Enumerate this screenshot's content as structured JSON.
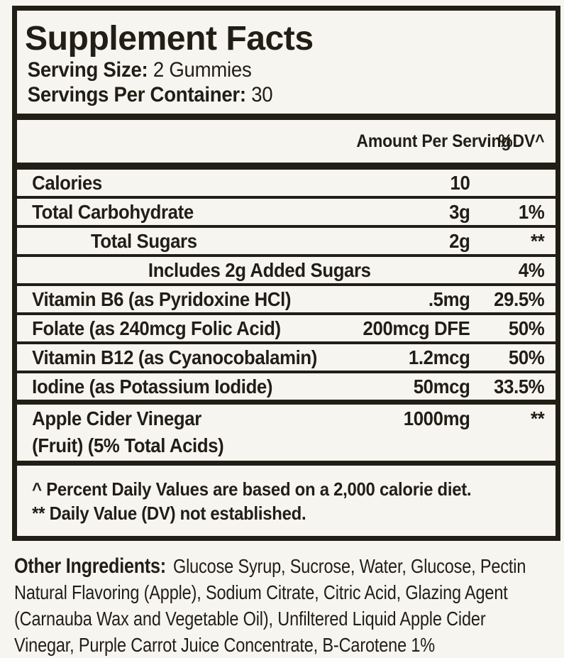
{
  "panel": {
    "title": "Supplement Facts",
    "serving_size": {
      "label": "Serving Size:",
      "value": "2 Gummies"
    },
    "servings_per_container": {
      "label": "Servings Per Container:",
      "value": "30"
    },
    "columns": {
      "amount": "Amount Per Serving",
      "dv": "%DV^"
    },
    "rows": [
      {
        "name": "Calories",
        "amount": "10",
        "dv": "",
        "indent": 0
      },
      {
        "name": "Total Carbohydrate",
        "amount": "3g",
        "dv": "1%",
        "indent": 0
      },
      {
        "name": "Total Sugars",
        "amount": "2g",
        "dv": "**",
        "indent": 1
      },
      {
        "name": "Includes 2g Added Sugars",
        "amount": "",
        "dv": "4%",
        "indent": 2
      },
      {
        "name": "Vitamin B6 (as Pyridoxine HCl)",
        "amount": ".5mg",
        "dv": "29.5%",
        "indent": 0
      },
      {
        "name": "Folate (as 240mcg Folic Acid)",
        "amount": "200mcg DFE",
        "dv": "50%",
        "indent": 0
      },
      {
        "name": "Vitamin B12 (as Cyanocobalamin)",
        "amount": "1.2mcg",
        "dv": "50%",
        "indent": 0
      },
      {
        "name": "Iodine (as Potassium Iodide)",
        "amount": "50mcg",
        "dv": "33.5%",
        "indent": 0,
        "thick_bottom": true
      },
      {
        "name": "Apple Cider Vinegar",
        "name2": "(Fruit) (5% Total Acids)",
        "amount": "1000mg",
        "dv": "**",
        "indent": 0,
        "thick_bottom": true
      }
    ],
    "footnotes": [
      "^ Percent Daily Values are based on a 2,000 calorie diet.",
      "** Daily Value (DV) not established."
    ]
  },
  "other_ingredients": {
    "heading": "Other Ingredients:",
    "lines": [
      "Glucose Syrup, Sucrose, Water, Glucose, Pectin",
      "Natural Flavoring (Apple), Sodium Citrate, Citric Acid, Glazing Agent",
      "(Carnauba Wax and Vegetable Oil), Unfiltered Liquid Apple Cider",
      "Vinegar, Purple Carrot Juice Concentrate, B-Carotene 1%"
    ]
  },
  "colors": {
    "background": "#f7f5ef",
    "ink": "#211e16"
  }
}
